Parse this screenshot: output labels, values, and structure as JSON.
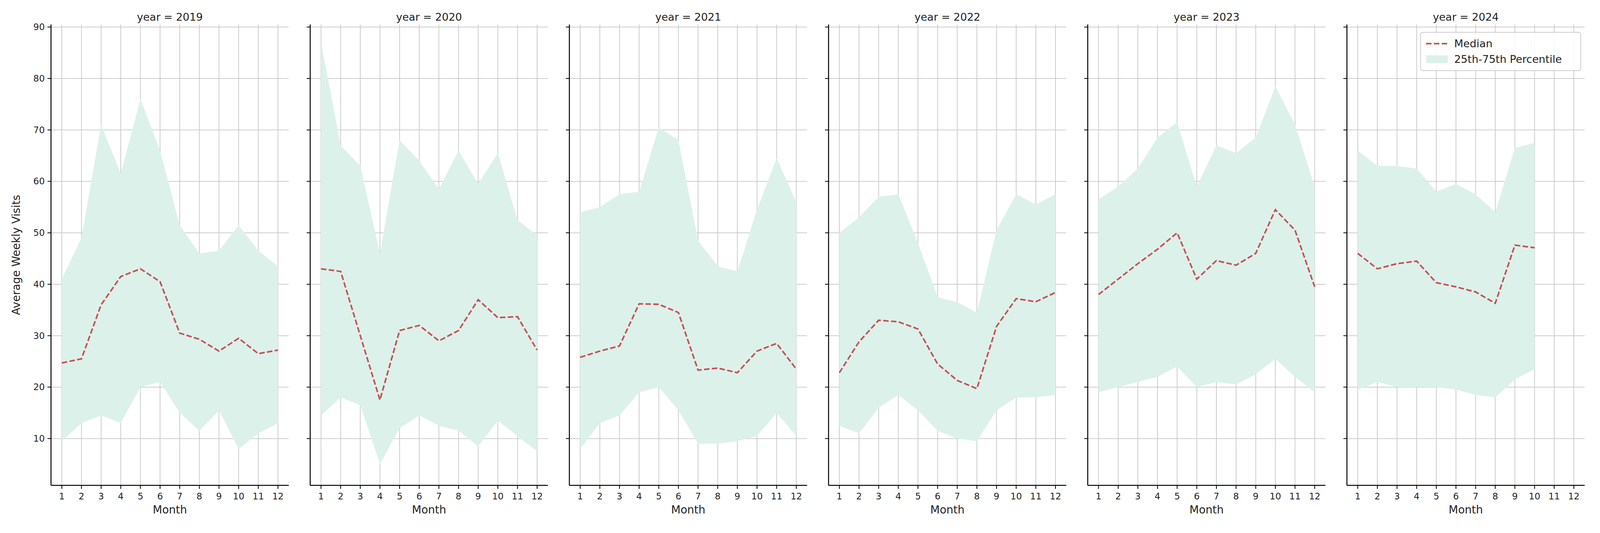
{
  "chart_data": [
    {
      "type": "line",
      "title": "year = 2019",
      "xlabel": "Month",
      "ylabel": "Average Weekly Visits",
      "x": [
        1,
        2,
        3,
        4,
        5,
        6,
        7,
        8,
        9,
        10,
        11,
        12
      ],
      "xlim": [
        0.45,
        12.55
      ],
      "ylim": [
        0.9,
        90.5
      ],
      "xticks": [
        1,
        2,
        3,
        4,
        5,
        6,
        7,
        8,
        9,
        10,
        11,
        12
      ],
      "yticks": [
        10,
        20,
        30,
        40,
        50,
        60,
        70,
        80,
        90
      ],
      "grid": true,
      "series": [
        {
          "type": "line",
          "color": "#c44e52",
          "line_style": "dashed",
          "values": [
            24.7,
            25.5,
            36,
            41.5,
            43,
            40.5,
            30.5,
            29.3,
            27,
            29.5,
            26.5,
            27.2
          ]
        },
        {
          "type": "band",
          "color": "#dcf1ea",
          "lower": [
            9.5,
            13,
            14.5,
            13,
            20,
            21,
            15,
            11.5,
            15.5,
            8,
            11,
            13
          ],
          "upper": [
            41,
            49,
            71,
            61.5,
            76,
            66,
            51.5,
            46,
            46.5,
            51.5,
            46.5,
            43.5
          ]
        }
      ]
    },
    {
      "type": "line",
      "title": "year = 2020",
      "xlabel": "Month",
      "tick_labels": "x",
      "x": [
        1,
        2,
        3,
        4,
        5,
        6,
        7,
        8,
        9,
        10,
        11,
        12
      ],
      "xlim": [
        0.45,
        12.55
      ],
      "ylim": [
        0.9,
        90.5
      ],
      "xticks": [
        1,
        2,
        3,
        4,
        5,
        6,
        7,
        8,
        9,
        10,
        11,
        12
      ],
      "yticks": [
        10,
        20,
        30,
        40,
        50,
        60,
        70,
        80,
        90
      ],
      "grid": true,
      "series": [
        {
          "type": "line",
          "color": "#c44e52",
          "line_style": "dashed",
          "values": [
            43,
            42.5,
            30,
            17.5,
            31,
            32,
            29,
            31,
            37,
            33.5,
            33.7,
            27.2
          ]
        },
        {
          "type": "band",
          "color": "#dcf1ea",
          "lower": [
            14.5,
            18,
            16.5,
            5,
            12,
            14.5,
            12.5,
            11.5,
            8.5,
            13.5,
            10.5,
            7.5
          ],
          "upper": [
            87,
            67,
            63,
            46,
            68,
            64,
            58.5,
            66,
            59.5,
            65.5,
            52.5,
            49.5
          ]
        }
      ]
    },
    {
      "type": "line",
      "title": "year = 2021",
      "xlabel": "Month",
      "tick_labels": "x",
      "x": [
        1,
        2,
        3,
        4,
        5,
        6,
        7,
        8,
        9,
        10,
        11,
        12
      ],
      "xlim": [
        0.45,
        12.55
      ],
      "ylim": [
        0.9,
        90.5
      ],
      "xticks": [
        1,
        2,
        3,
        4,
        5,
        6,
        7,
        8,
        9,
        10,
        11,
        12
      ],
      "yticks": [
        10,
        20,
        30,
        40,
        50,
        60,
        70,
        80,
        90
      ],
      "grid": true,
      "series": [
        {
          "type": "line",
          "color": "#c44e52",
          "line_style": "dashed",
          "values": [
            25.8,
            27,
            28,
            36.2,
            36.1,
            34.5,
            23.3,
            23.7,
            22.8,
            27,
            28.5,
            23.5
          ]
        },
        {
          "type": "band",
          "color": "#dcf1ea",
          "lower": [
            8,
            13,
            14.5,
            19,
            20,
            15.5,
            9,
            9,
            9.5,
            10.5,
            15,
            10.5
          ],
          "upper": [
            54,
            55,
            57.5,
            58,
            70.5,
            68,
            48.5,
            43.5,
            42.5,
            54.5,
            64.5,
            56
          ]
        }
      ]
    },
    {
      "type": "line",
      "title": "year = 2022",
      "xlabel": "Month",
      "tick_labels": "x",
      "x": [
        1,
        2,
        3,
        4,
        5,
        6,
        7,
        8,
        9,
        10,
        11,
        12
      ],
      "xlim": [
        0.45,
        12.55
      ],
      "ylim": [
        0.9,
        90.5
      ],
      "xticks": [
        1,
        2,
        3,
        4,
        5,
        6,
        7,
        8,
        9,
        10,
        11,
        12
      ],
      "yticks": [
        10,
        20,
        30,
        40,
        50,
        60,
        70,
        80,
        90
      ],
      "grid": true,
      "series": [
        {
          "type": "line",
          "color": "#c44e52",
          "line_style": "dashed",
          "values": [
            22.8,
            28.8,
            33,
            32.7,
            31.3,
            24.5,
            21.3,
            19.7,
            31.8,
            37.2,
            36.6,
            38.4
          ]
        },
        {
          "type": "band",
          "color": "#dcf1ea",
          "lower": [
            12.5,
            11,
            16,
            18.5,
            15.5,
            11.5,
            10,
            9.5,
            15.5,
            18,
            18,
            18.5
          ],
          "upper": [
            50,
            53,
            57,
            57.5,
            48,
            37.5,
            36.5,
            34.5,
            50.5,
            57.5,
            55.5,
            57.5
          ]
        }
      ]
    },
    {
      "type": "line",
      "title": "year = 2023",
      "xlabel": "Month",
      "tick_labels": "x",
      "x": [
        1,
        2,
        3,
        4,
        5,
        6,
        7,
        8,
        9,
        10,
        11,
        12
      ],
      "xlim": [
        0.45,
        12.55
      ],
      "ylim": [
        0.9,
        90.5
      ],
      "xticks": [
        1,
        2,
        3,
        4,
        5,
        6,
        7,
        8,
        9,
        10,
        11,
        12
      ],
      "yticks": [
        10,
        20,
        30,
        40,
        50,
        60,
        70,
        80,
        90
      ],
      "grid": true,
      "series": [
        {
          "type": "line",
          "color": "#c44e52",
          "line_style": "dashed",
          "values": [
            38,
            41,
            44,
            46.8,
            50,
            41,
            44.6,
            43.7,
            46,
            54.5,
            50.5,
            39.5
          ]
        },
        {
          "type": "band",
          "color": "#dcf1ea",
          "lower": [
            19,
            20,
            21,
            22,
            24,
            20,
            21,
            20.5,
            22.5,
            25.5,
            22,
            19
          ],
          "upper": [
            56.5,
            59,
            62.5,
            68.5,
            71.5,
            59,
            67,
            65.5,
            68.5,
            78.5,
            71,
            59
          ]
        }
      ]
    },
    {
      "type": "line",
      "title": "year = 2024",
      "xlabel": "Month",
      "tick_labels": "x",
      "legend": "upper right",
      "x": [
        1,
        2,
        3,
        4,
        5,
        6,
        7,
        8,
        9,
        10
      ],
      "xlim": [
        0.45,
        12.55
      ],
      "ylim": [
        0.9,
        90.5
      ],
      "xticks": [
        1,
        2,
        3,
        4,
        5,
        6,
        7,
        8,
        9,
        10,
        11,
        12
      ],
      "yticks": [
        10,
        20,
        30,
        40,
        50,
        60,
        70,
        80,
        90
      ],
      "grid": true,
      "series": [
        {
          "name": "Median",
          "type": "line",
          "color": "#c44e52",
          "line_style": "dashed",
          "values": [
            46,
            43,
            44,
            44.5,
            40.3,
            39.5,
            38.5,
            36.3,
            47.6,
            47.1
          ]
        },
        {
          "name": "25th-75th Percentile",
          "type": "band",
          "color": "#dcf1ea",
          "lower": [
            19.5,
            21,
            20,
            20,
            20,
            19.5,
            18.5,
            18,
            21.5,
            23.5
          ],
          "upper": [
            66,
            63,
            63,
            62.5,
            58,
            59.5,
            57.5,
            54,
            66.5,
            67.5
          ]
        }
      ]
    }
  ]
}
